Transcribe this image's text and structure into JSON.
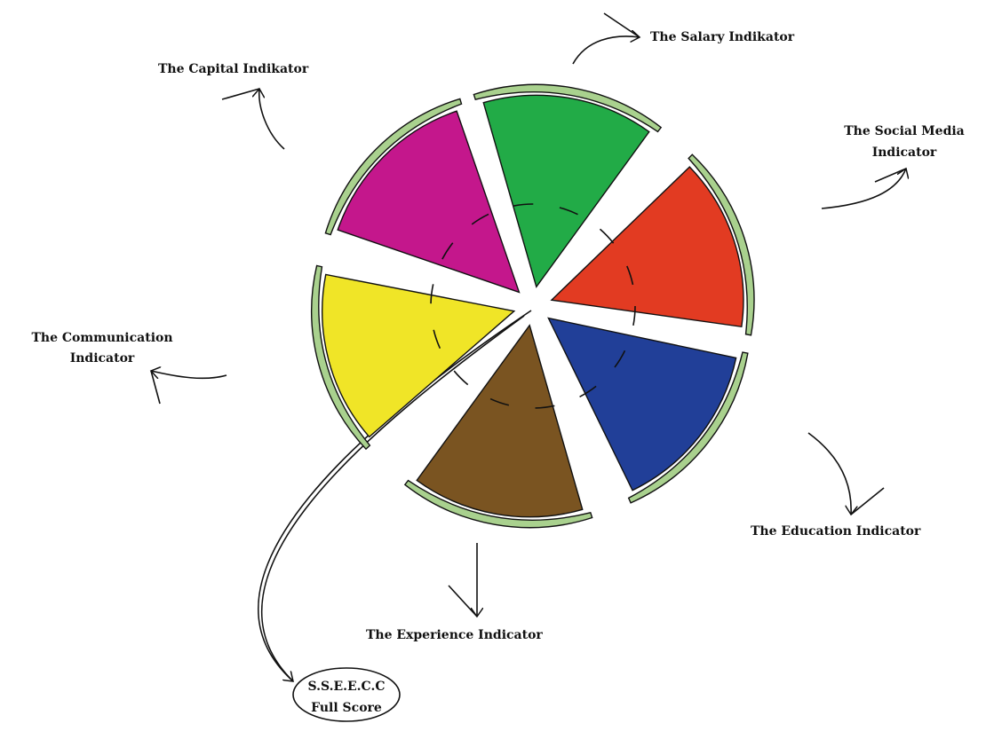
{
  "nodes": [
    {
      "lines": [
        "The Salary Indikator"
      ],
      "color": "#22ab47"
    },
    {
      "lines": [
        "The Social Media",
        "Indicator"
      ],
      "color": "#e23b22"
    },
    {
      "lines": [
        "The Education Indicator"
      ],
      "color": "#213f98"
    },
    {
      "lines": [
        "The Experience Indicator"
      ],
      "color": "#7a5421"
    },
    {
      "lines": [
        "The Communication",
        "Indicator"
      ],
      "color": "#f0e527"
    },
    {
      "lines": [
        "The Capital Indikator"
      ],
      "color": "#c4178c"
    }
  ],
  "center": {
    "lines": [
      "S.S.E.E.C.C",
      "Full Score"
    ]
  }
}
